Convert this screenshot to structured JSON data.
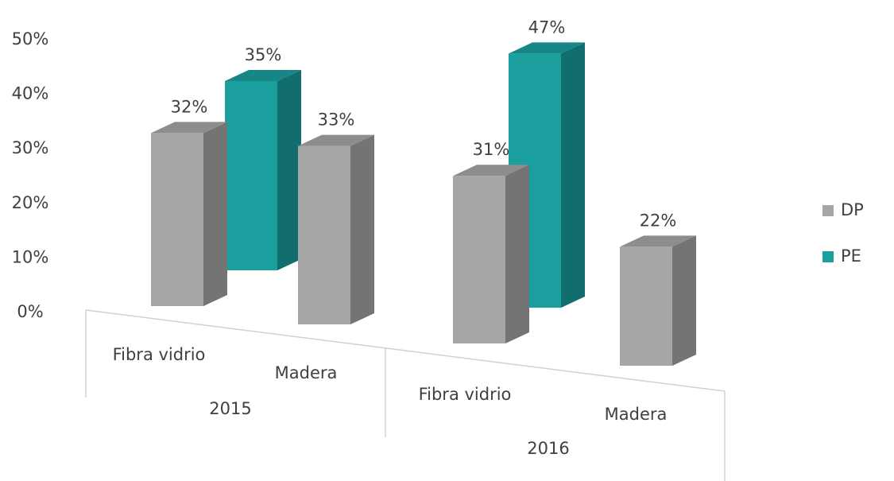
{
  "chart_data": {
    "type": "bar3d",
    "groups": [
      "2015",
      "2016"
    ],
    "categories": [
      "Fibra vidrio",
      "Madera",
      "Fibra vidrio",
      "Madera"
    ],
    "series": [
      {
        "name": "DP",
        "color": "#a6a6a6",
        "values": [
          32,
          33,
          31,
          22
        ],
        "value_labels": [
          "32%",
          "33%",
          "31%",
          "22%"
        ]
      },
      {
        "name": "PE",
        "color": "#1a9e9e",
        "values": [
          35,
          null,
          47,
          null
        ],
        "value_labels": [
          "35%",
          null,
          "47%",
          null
        ]
      }
    ],
    "ylim": [
      0,
      50
    ],
    "yticks": [
      {
        "value": 0,
        "label": "0%"
      },
      {
        "value": 10,
        "label": "10%"
      },
      {
        "value": 20,
        "label": "20%"
      },
      {
        "value": 30,
        "label": "30%"
      },
      {
        "value": 40,
        "label": "40%"
      },
      {
        "value": 50,
        "label": "50%"
      }
    ],
    "legend": "right"
  }
}
